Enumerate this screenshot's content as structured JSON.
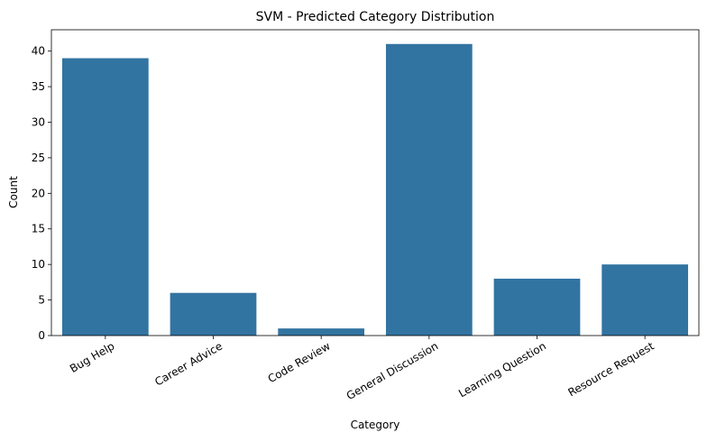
{
  "chart_data": {
    "type": "bar",
    "title": "SVM - Predicted Category Distribution",
    "xlabel": "Category",
    "ylabel": "Count",
    "categories": [
      "Bug Help",
      "Career Advice",
      "Code Review",
      "General Discussion",
      "Learning Question",
      "Resource Request"
    ],
    "values": [
      39,
      6,
      1,
      41,
      8,
      10
    ],
    "ylim": [
      0,
      43
    ],
    "yticks": [
      0,
      5,
      10,
      15,
      20,
      25,
      30,
      35,
      40
    ],
    "grid": false,
    "legend": "none",
    "bar_color": "#3274a1"
  }
}
